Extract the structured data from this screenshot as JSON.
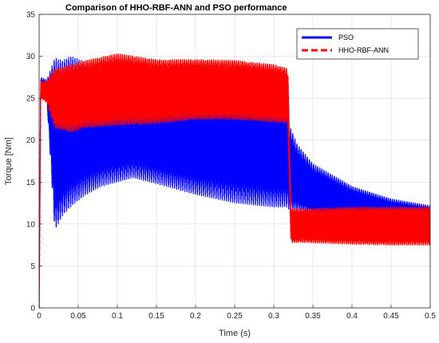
{
  "chart_data": {
    "type": "line",
    "title": "Comparison of HHO-RBF-ANN and PSO performance",
    "xlabel": "Time (s)",
    "ylabel": "Torque [Nm]",
    "xlim": [
      0,
      0.5
    ],
    "ylim": [
      0,
      35
    ],
    "xticks": [
      "0",
      "0.05",
      "0.1",
      "0.15",
      "0.2",
      "0.25",
      "0.3",
      "0.35",
      "0.4",
      "0.45",
      "0.5"
    ],
    "yticks": [
      "0",
      "5",
      "10",
      "15",
      "20",
      "25",
      "30",
      "35"
    ],
    "grid": true,
    "legend_position": "top-right",
    "series": [
      {
        "name": "PSO",
        "color": "#0000ff",
        "style": "solid",
        "envelope": {
          "x": [
            0.0,
            0.002,
            0.01,
            0.02,
            0.03,
            0.04,
            0.05,
            0.06,
            0.08,
            0.1,
            0.12,
            0.15,
            0.2,
            0.25,
            0.3,
            0.318,
            0.32,
            0.33,
            0.35,
            0.4,
            0.45,
            0.5
          ],
          "upper": [
            0.0,
            27.5,
            27.2,
            29.8,
            29.5,
            30.0,
            29.7,
            29.2,
            28.5,
            28.0,
            27.8,
            27.5,
            27.3,
            27.2,
            27.0,
            26.8,
            21.8,
            19.5,
            17.2,
            14.5,
            13.0,
            12.2
          ],
          "lower": [
            0.0,
            25.5,
            24.5,
            9.2,
            11.0,
            12.0,
            12.8,
            13.5,
            14.5,
            15.0,
            15.5,
            14.8,
            13.5,
            12.5,
            12.0,
            12.0,
            11.5,
            11.5,
            11.0,
            10.3,
            9.8,
            9.5
          ]
        }
      },
      {
        "name": "HHO-RBF-ANN",
        "color": "#ff0000",
        "style": "dashed",
        "envelope": {
          "x": [
            0.0,
            0.002,
            0.01,
            0.02,
            0.04,
            0.06,
            0.1,
            0.15,
            0.2,
            0.25,
            0.3,
            0.318,
            0.322,
            0.34,
            0.4,
            0.45,
            0.5
          ],
          "upper": [
            0.0,
            27.0,
            27.0,
            28.5,
            29.0,
            29.5,
            30.3,
            29.6,
            29.6,
            29.5,
            29.0,
            28.5,
            11.8,
            11.8,
            12.0,
            12.0,
            12.0
          ],
          "lower": [
            0.0,
            25.0,
            24.5,
            21.5,
            21.0,
            21.5,
            21.8,
            22.0,
            22.5,
            22.5,
            22.2,
            22.0,
            7.8,
            7.8,
            7.6,
            7.5,
            7.5
          ]
        }
      }
    ]
  }
}
